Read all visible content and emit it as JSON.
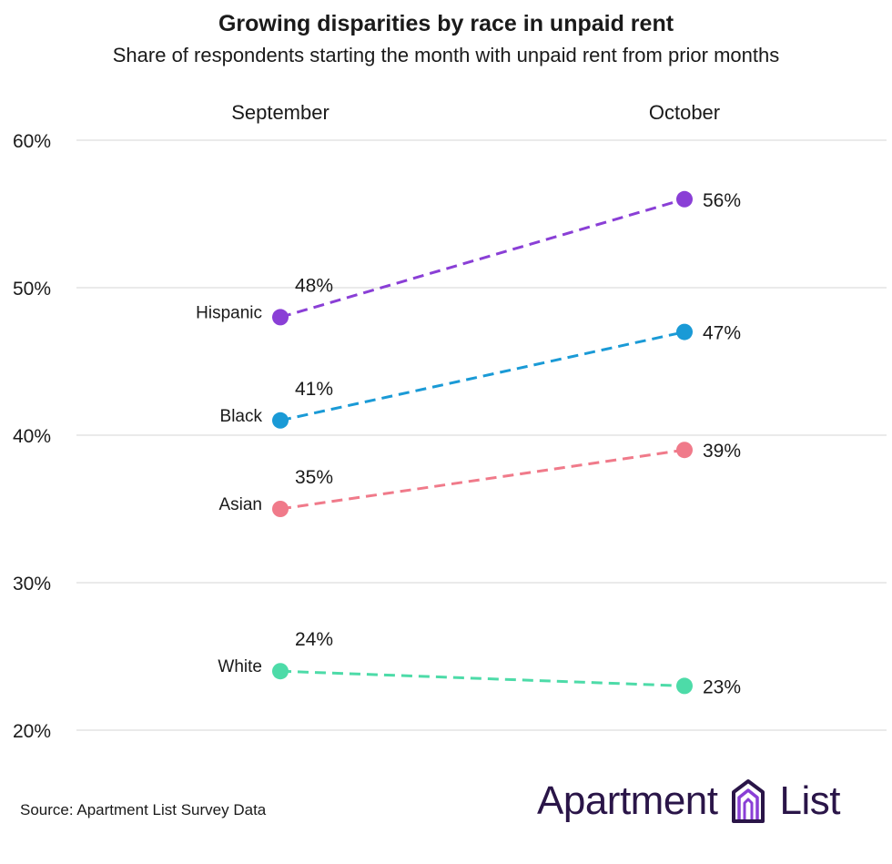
{
  "chart_data": {
    "type": "line",
    "title": "Growing disparities by race in unpaid rent",
    "subtitle": "Share of respondents starting the month with unpaid rent from prior months",
    "categories": [
      "September",
      "October"
    ],
    "ylim": [
      20,
      60
    ],
    "yticks": [
      20,
      30,
      40,
      50,
      60
    ],
    "ytick_labels": [
      "20%",
      "30%",
      "40%",
      "50%",
      "60%"
    ],
    "grid": true,
    "legend": "inline labels at left",
    "series": [
      {
        "name": "Hispanic",
        "values": [
          48,
          56
        ],
        "labels": [
          "48%",
          "56%"
        ],
        "color": "#8a3fd6"
      },
      {
        "name": "Black",
        "values": [
          41,
          47
        ],
        "labels": [
          "41%",
          "47%"
        ],
        "color": "#1a9ad6"
      },
      {
        "name": "Asian",
        "values": [
          35,
          39
        ],
        "labels": [
          "35%",
          "39%"
        ],
        "color": "#f07a8a"
      },
      {
        "name": "White",
        "values": [
          24,
          23
        ],
        "labels": [
          "24%",
          "23%"
        ],
        "color": "#4ddba8"
      }
    ]
  },
  "footer": {
    "source": "Source: Apartment List Survey Data",
    "logo_left": "Apartment",
    "logo_right": "List",
    "logo_icon": "apartment-list-building-icon",
    "logo_color": "#2a1548",
    "logo_icon_color": "#8a3fd6"
  }
}
